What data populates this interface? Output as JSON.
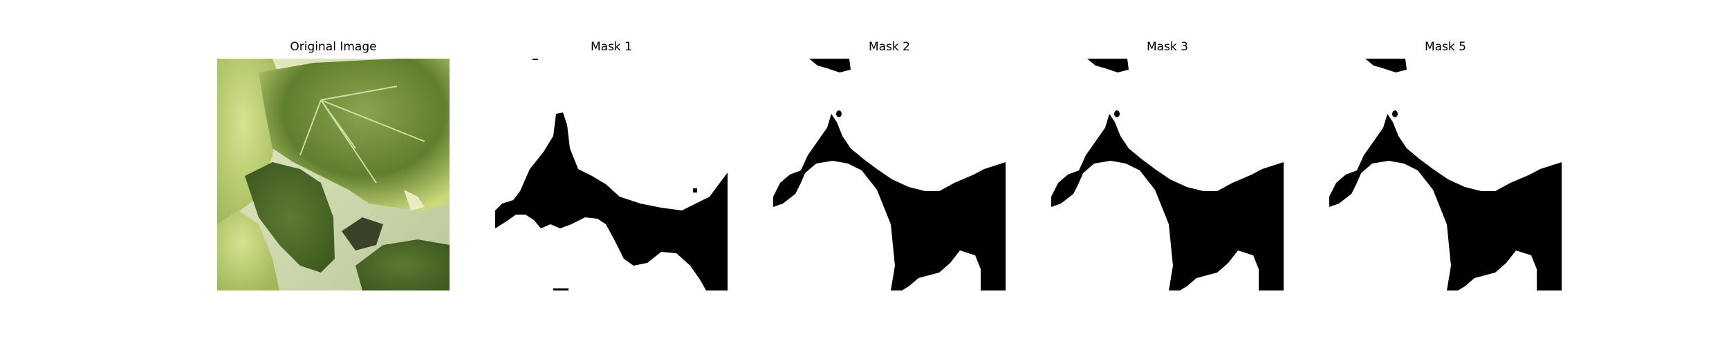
{
  "panels": [
    {
      "title": "Original Image",
      "kind": "photo"
    },
    {
      "title": "Mask 1",
      "kind": "mask"
    },
    {
      "title": "Mask 2",
      "kind": "mask"
    },
    {
      "title": "Mask 3",
      "kind": "mask"
    },
    {
      "title": "Mask 5",
      "kind": "mask"
    }
  ],
  "colors": {
    "mask_fg": "#000000",
    "mask_bg": "#ffffff",
    "leaf_light": "#c8d98a",
    "leaf_dark": "#4f6a2a"
  }
}
